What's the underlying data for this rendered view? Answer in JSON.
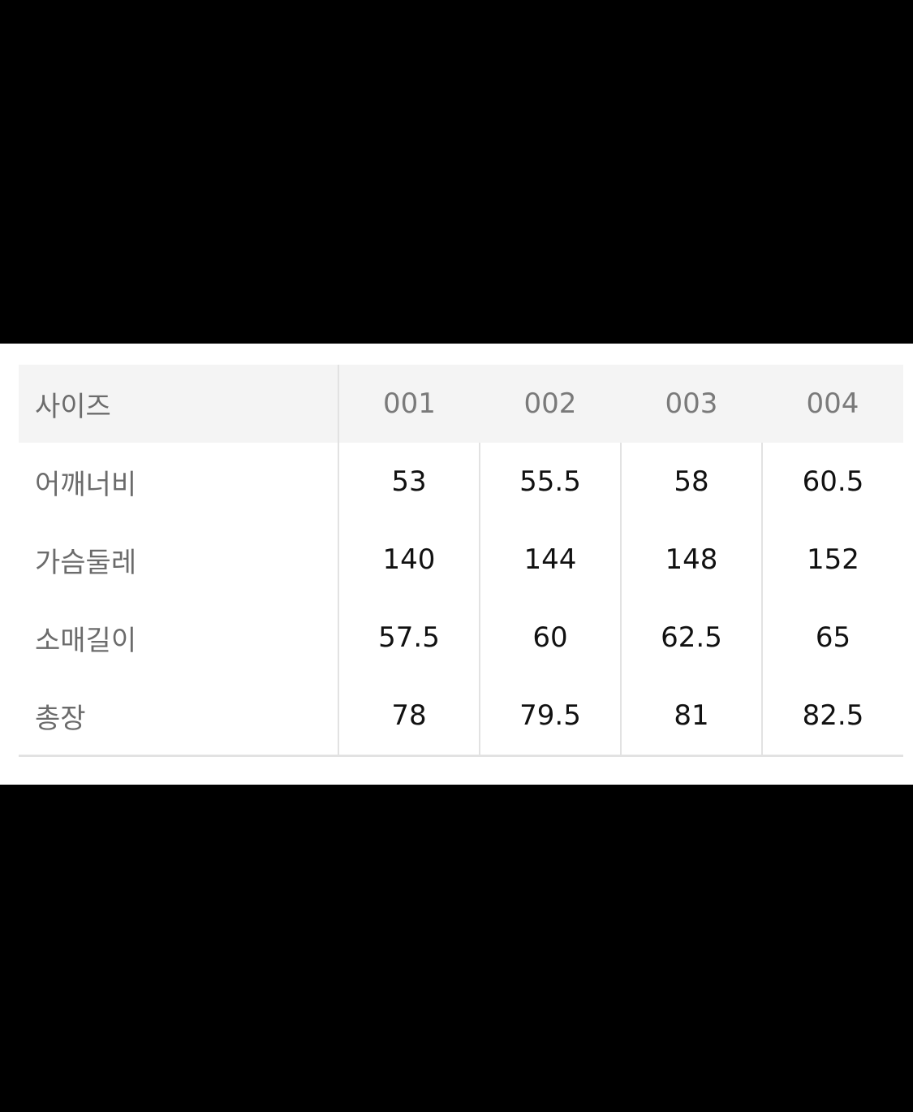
{
  "table": {
    "headers": [
      "사이즈",
      "001",
      "002",
      "003",
      "004"
    ],
    "rows": [
      {
        "label": "어깨너비",
        "values": [
          "53",
          "55.5",
          "58",
          "60.5"
        ]
      },
      {
        "label": "가슴둘레",
        "values": [
          "140",
          "144",
          "148",
          "152"
        ]
      },
      {
        "label": "소매길이",
        "values": [
          "57.5",
          "60",
          "62.5",
          "65"
        ]
      },
      {
        "label": "총장",
        "values": [
          "78",
          "79.5",
          "81",
          "82.5"
        ]
      }
    ]
  }
}
